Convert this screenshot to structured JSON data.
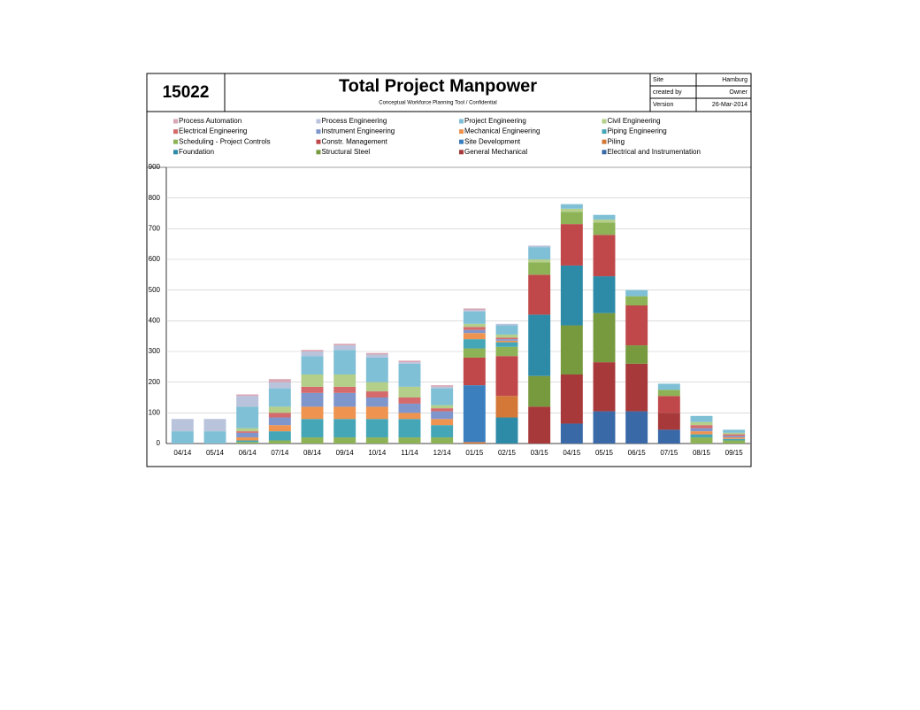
{
  "header": {
    "number": "15022",
    "title": "Total Project Manpower",
    "subtitle": "Conceptual Workforce Planning Tool  / Confidential",
    "info": [
      [
        "Site",
        "Hamburg"
      ],
      [
        "created by",
        "Owner"
      ],
      [
        "Version",
        "26-Mar-2014"
      ]
    ]
  },
  "chart_data": {
    "type": "stacked-bar",
    "categories": [
      "04/14",
      "05/14",
      "06/14",
      "07/14",
      "08/14",
      "09/14",
      "10/14",
      "11/14",
      "12/14",
      "01/15",
      "02/15",
      "03/15",
      "04/15",
      "05/15",
      "06/15",
      "07/15",
      "08/15",
      "09/15"
    ],
    "ylim": [
      0,
      900
    ],
    "yticks": [
      0,
      100,
      200,
      300,
      400,
      500,
      600,
      700,
      800,
      900
    ],
    "grid": true,
    "series": [
      {
        "name": "Process Automation",
        "color": "#d9a6b3",
        "values": [
          0,
          0,
          5,
          10,
          5,
          5,
          5,
          5,
          5,
          5,
          0,
          0,
          0,
          0,
          0,
          0,
          0,
          0
        ]
      },
      {
        "name": "Process Engineering",
        "color": "#b9c3dc",
        "values": [
          40,
          40,
          35,
          20,
          15,
          15,
          10,
          5,
          5,
          5,
          5,
          5,
          0,
          0,
          0,
          0,
          0,
          0
        ]
      },
      {
        "name": "Project Engineering",
        "color": "#7fc0d6",
        "values": [
          40,
          40,
          70,
          60,
          60,
          80,
          80,
          75,
          55,
          40,
          30,
          40,
          15,
          15,
          20,
          20,
          20,
          10
        ]
      },
      {
        "name": "Civil Engineering",
        "color": "#b3cf8a",
        "values": [
          0,
          0,
          10,
          20,
          40,
          40,
          30,
          35,
          10,
          10,
          10,
          10,
          10,
          10,
          0,
          0,
          10,
          5
        ]
      },
      {
        "name": "Electrical Engineering",
        "color": "#d46a6c",
        "values": [
          0,
          0,
          5,
          15,
          20,
          20,
          20,
          20,
          10,
          10,
          5,
          0,
          0,
          0,
          0,
          0,
          10,
          5
        ]
      },
      {
        "name": "Instrument Engineering",
        "color": "#7f96cc",
        "values": [
          0,
          0,
          15,
          25,
          45,
          45,
          30,
          30,
          25,
          10,
          5,
          0,
          0,
          0,
          0,
          0,
          10,
          5
        ]
      },
      {
        "name": "Mechanical Engineering",
        "color": "#ee9450",
        "values": [
          0,
          0,
          10,
          20,
          40,
          40,
          40,
          20,
          20,
          20,
          5,
          0,
          0,
          0,
          0,
          0,
          10,
          5
        ]
      },
      {
        "name": "Piping Engineering",
        "color": "#45a6b8",
        "values": [
          0,
          0,
          5,
          30,
          60,
          60,
          60,
          60,
          40,
          30,
          15,
          0,
          0,
          0,
          0,
          0,
          10,
          5
        ]
      },
      {
        "name": "Scheduling - Project Controls",
        "color": "#8db356",
        "values": [
          0,
          0,
          5,
          10,
          20,
          20,
          20,
          20,
          20,
          30,
          30,
          40,
          40,
          40,
          30,
          20,
          20,
          10
        ]
      },
      {
        "name": "Constr. Management",
        "color": "#c0484a",
        "values": [
          0,
          0,
          0,
          0,
          0,
          0,
          0,
          0,
          0,
          90,
          130,
          130,
          135,
          135,
          130,
          55,
          0,
          0
        ]
      },
      {
        "name": "Site Development",
        "color": "#3c7fbf",
        "values": [
          0,
          0,
          0,
          0,
          0,
          0,
          0,
          0,
          0,
          185,
          0,
          0,
          0,
          0,
          0,
          0,
          0,
          0
        ]
      },
      {
        "name": "Piling",
        "color": "#d47838",
        "values": [
          0,
          0,
          0,
          0,
          0,
          0,
          0,
          0,
          0,
          5,
          70,
          0,
          0,
          0,
          0,
          0,
          0,
          0
        ]
      },
      {
        "name": "Foundation",
        "color": "#2e8ba8",
        "values": [
          0,
          0,
          0,
          0,
          0,
          0,
          0,
          0,
          0,
          0,
          85,
          200,
          195,
          120,
          0,
          0,
          0,
          0
        ]
      },
      {
        "name": "Structural Steel",
        "color": "#789a3f",
        "values": [
          0,
          0,
          0,
          0,
          0,
          0,
          0,
          0,
          0,
          0,
          0,
          100,
          160,
          160,
          60,
          0,
          0,
          0
        ]
      },
      {
        "name": "General Mechanical",
        "color": "#a8393a",
        "values": [
          0,
          0,
          0,
          0,
          0,
          0,
          0,
          0,
          0,
          0,
          0,
          120,
          160,
          160,
          155,
          55,
          0,
          0
        ]
      },
      {
        "name": "Electrical and Instrumentation",
        "color": "#3a69a8",
        "values": [
          0,
          0,
          0,
          0,
          0,
          0,
          0,
          0,
          0,
          0,
          0,
          0,
          65,
          105,
          105,
          45,
          0,
          0
        ]
      }
    ]
  }
}
